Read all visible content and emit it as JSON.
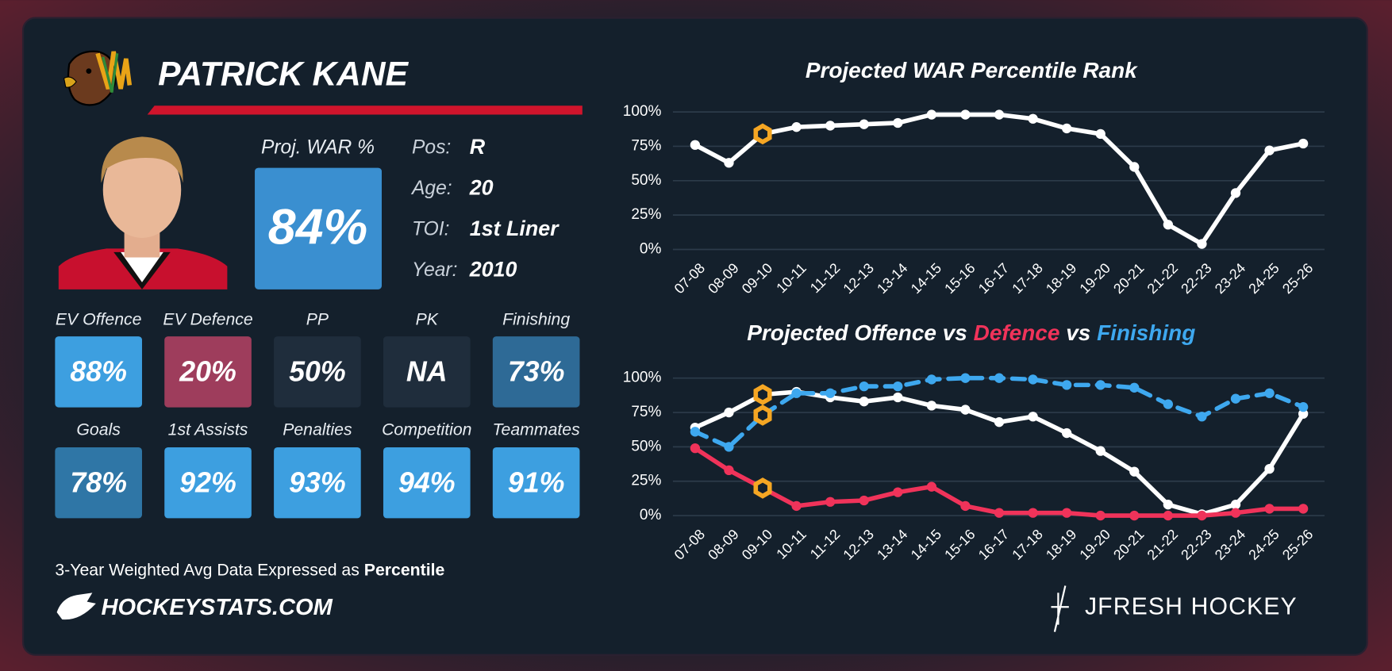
{
  "header": {
    "name": "PATRICK KANE"
  },
  "summary": {
    "label": "Proj. WAR %",
    "value": "84%",
    "color": "#3a8fd0"
  },
  "bio": [
    {
      "label": "Pos:",
      "value": "R"
    },
    {
      "label": "Age:",
      "value": "20"
    },
    {
      "label": "TOI:",
      "value": "1st Liner"
    },
    {
      "label": "Year:",
      "value": "2010"
    }
  ],
  "tiles": [
    {
      "label": "EV Offence",
      "value": "88%",
      "color": "#3d9fe0"
    },
    {
      "label": "EV Defence",
      "value": "20%",
      "color": "#9e3d5c"
    },
    {
      "label": "PP",
      "value": "50%",
      "color": "#1f2d3c"
    },
    {
      "label": "PK",
      "value": "NA",
      "color": "#1f2d3c"
    },
    {
      "label": "Finishing",
      "value": "73%",
      "color": "#2e6a96"
    },
    {
      "label": "Goals",
      "value": "78%",
      "color": "#2f76a6"
    },
    {
      "label": "1st Assists",
      "value": "92%",
      "color": "#3d9fe0"
    },
    {
      "label": "Penalties",
      "value": "93%",
      "color": "#3d9fe0"
    },
    {
      "label": "Competition",
      "value": "94%",
      "color": "#3d9fe0"
    },
    {
      "label": "Teammates",
      "value": "91%",
      "color": "#3d9fe0"
    }
  ],
  "footer": {
    "note": "3-Year Weighted Avg Data Expressed as",
    "note_bold": "Percentile",
    "site": "HOCKEYSTATS.COM",
    "brand": "JFRESH HOCKEY"
  },
  "chart_data": [
    {
      "type": "line",
      "title": "Projected WAR Percentile Rank",
      "categories": [
        "07-08",
        "08-09",
        "09-10",
        "10-11",
        "11-12",
        "12-13",
        "13-14",
        "14-15",
        "15-16",
        "16-17",
        "17-18",
        "18-19",
        "19-20",
        "20-21",
        "21-22",
        "22-23",
        "23-24",
        "24-25",
        "25-26"
      ],
      "values": [
        76,
        63,
        84,
        89,
        90,
        91,
        92,
        98,
        98,
        98,
        95,
        88,
        84,
        60,
        18,
        4,
        41,
        72,
        77
      ],
      "color": "#ffffff",
      "highlight_index": 2,
      "ylim": [
        0,
        100
      ],
      "yticks": [
        {
          "value": 0,
          "label": "0%"
        },
        {
          "value": 25,
          "label": "25%"
        },
        {
          "value": 50,
          "label": "50%"
        },
        {
          "value": 75,
          "label": "75%"
        },
        {
          "value": 100,
          "label": "100%"
        }
      ],
      "grid": true
    },
    {
      "type": "line",
      "title": {
        "prefix": "Projected",
        "joiner": "vs"
      },
      "categories": [
        "07-08",
        "08-09",
        "09-10",
        "10-11",
        "11-12",
        "12-13",
        "13-14",
        "14-15",
        "15-16",
        "16-17",
        "17-18",
        "18-19",
        "19-20",
        "20-21",
        "21-22",
        "22-23",
        "23-24",
        "24-25",
        "25-26"
      ],
      "series": [
        {
          "name": "Offence",
          "color": "#ffffff",
          "line_style": "solid",
          "values": [
            64,
            75,
            88,
            90,
            86,
            83,
            86,
            80,
            77,
            68,
            72,
            60,
            47,
            32,
            8,
            1,
            8,
            34,
            74
          ]
        },
        {
          "name": "Defence",
          "color": "#f0335a",
          "line_style": "solid",
          "values": [
            49,
            33,
            20,
            7,
            10,
            11,
            17,
            21,
            7,
            2,
            2,
            2,
            0,
            0,
            0,
            0,
            2,
            5,
            5
          ]
        },
        {
          "name": "Finishing",
          "color": "#3ea8ef",
          "line_style": "dashed",
          "values": [
            61,
            50,
            73,
            89,
            89,
            94,
            94,
            99,
            100,
            100,
            99,
            95,
            95,
            93,
            81,
            72,
            85,
            89,
            79
          ]
        }
      ],
      "highlight_index": 2,
      "ylim": [
        0,
        100
      ],
      "yticks": [
        {
          "value": 0,
          "label": "0%"
        },
        {
          "value": 25,
          "label": "25%"
        },
        {
          "value": 50,
          "label": "50%"
        },
        {
          "value": 75,
          "label": "75%"
        },
        {
          "value": 100,
          "label": "100%"
        }
      ],
      "grid": true
    }
  ]
}
